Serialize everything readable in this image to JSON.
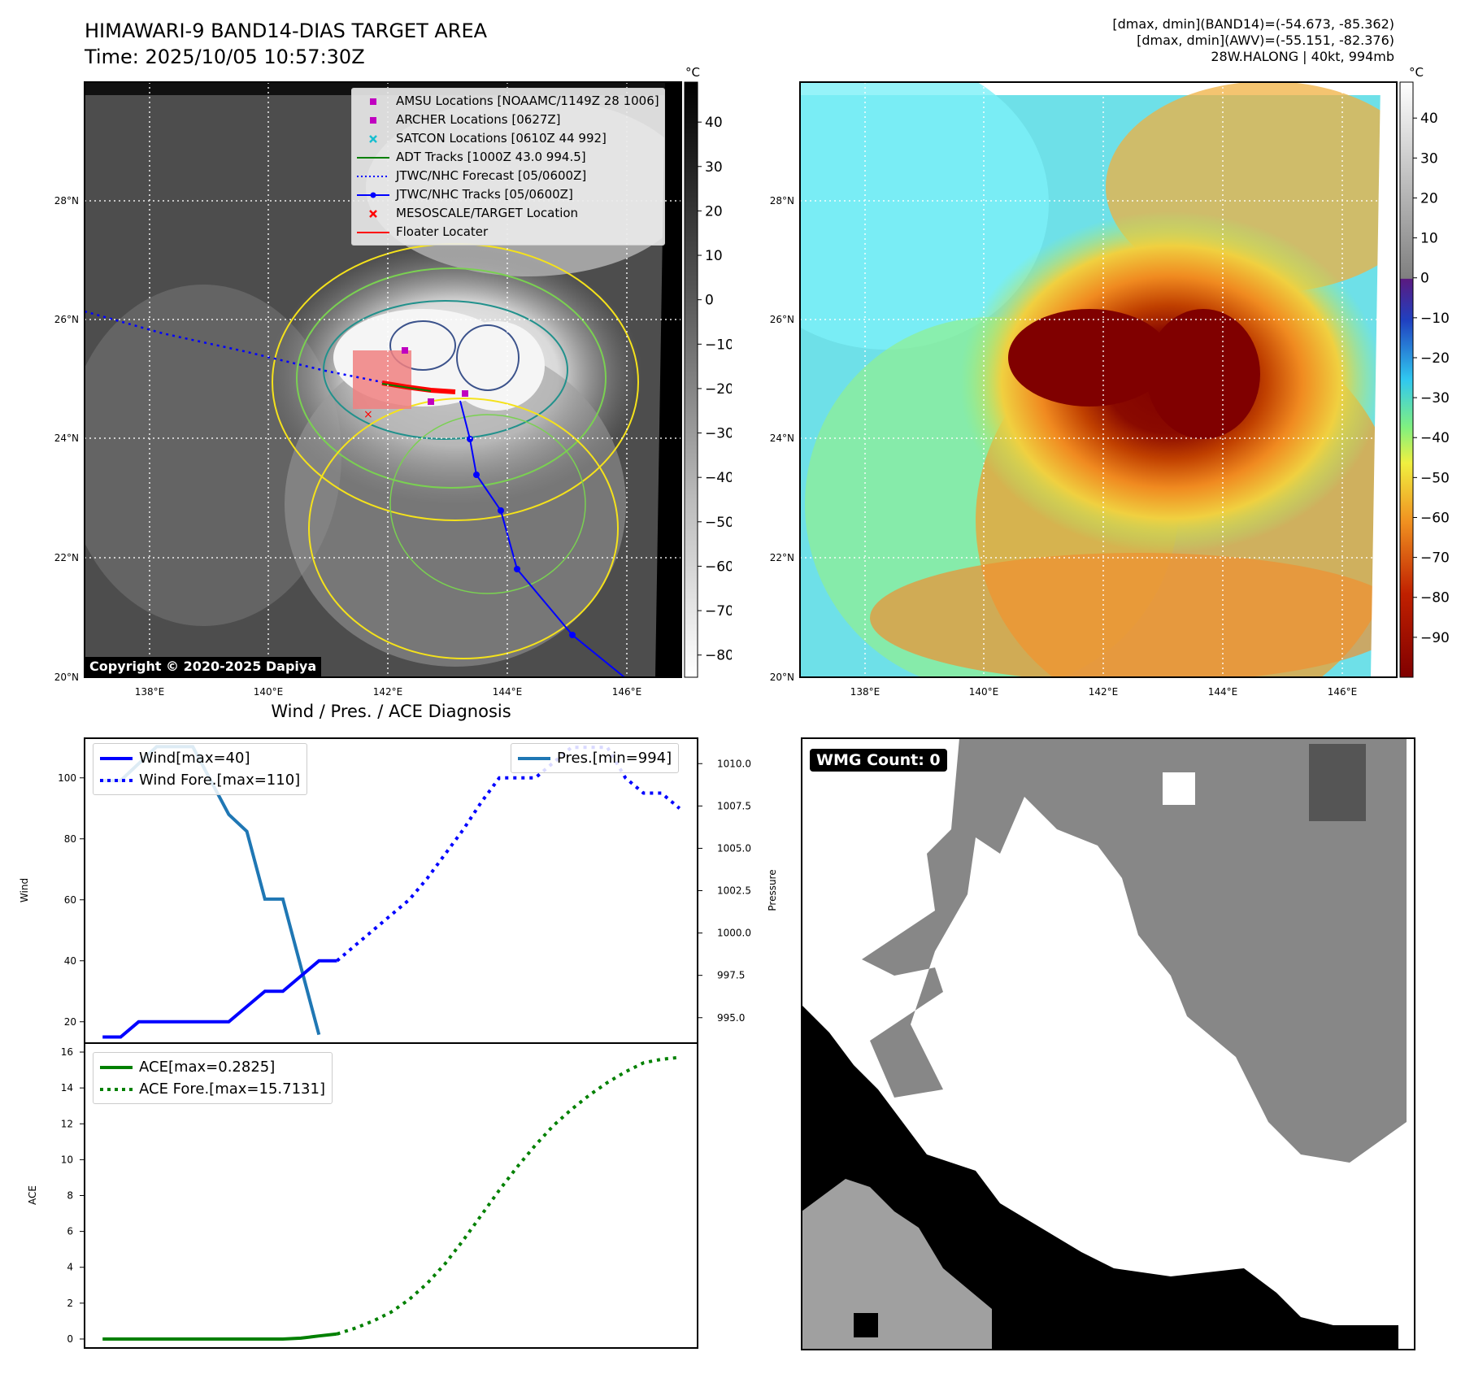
{
  "header": {
    "title_line1": "HIMAWARI-9 BAND14-DIAS TARGET AREA",
    "title_line2": "Time: 2025/10/05 10:57:30Z",
    "stats_line1": "[dmax, dmin](BAND14)=(-54.673, -85.362)",
    "stats_line2": "[dmax, dmin](AWV)=(-55.151, -82.376)",
    "stats_line3": "28W.HALONG | 40kt, 994mb"
  },
  "map_axes": {
    "lat_labels": [
      "28°N",
      "26°N",
      "24°N",
      "22°N",
      "20°N"
    ],
    "lat_values": [
      28,
      26,
      24,
      22,
      20
    ],
    "lon_labels": [
      "138°E",
      "140°E",
      "142°E",
      "144°E",
      "146°E"
    ],
    "lon_values": [
      138,
      140,
      142,
      144,
      146
    ],
    "lon_range": [
      137,
      147
    ],
    "lat_range": [
      20,
      30
    ]
  },
  "colorbar_left": {
    "unit": "°C",
    "ticks": [
      "40",
      "30",
      "20",
      "10",
      "0",
      "−10",
      "−20",
      "−30",
      "−40",
      "−50",
      "−60",
      "−70",
      "−80"
    ],
    "range": [
      -85,
      49
    ]
  },
  "colorbar_right": {
    "unit": "°C",
    "ticks": [
      "40",
      "30",
      "20",
      "10",
      "0",
      "−10",
      "−20",
      "−30",
      "−40",
      "−50",
      "−60",
      "−70",
      "−80",
      "−90"
    ],
    "range": [
      -100,
      49
    ]
  },
  "map_legend": [
    {
      "label": "AMSU Locations [NOAAMC/1149Z 28 1006]",
      "symbol": "square",
      "color": "#c000c0",
      "icon": "magenta-square-icon"
    },
    {
      "label": "ARCHER Locations [0627Z]",
      "symbol": "square",
      "color": "#c000c0",
      "icon": "magenta-square-icon"
    },
    {
      "label": "SATCON Locations [0610Z 44 992]",
      "symbol": "x",
      "color": "#17becf",
      "icon": "cyan-x-icon"
    },
    {
      "label": "ADT Tracks [1000Z 43.0 994.5]",
      "symbol": "line",
      "color": "#008000",
      "icon": "green-line-icon"
    },
    {
      "label": "JTWC/NHC Forecast [05/0600Z]",
      "symbol": "dotted",
      "color": "#0000ff",
      "icon": "blue-dotted-line-icon"
    },
    {
      "label": "JTWC/NHC Tracks [05/0600Z]",
      "symbol": "line-dot",
      "color": "#0000ff",
      "icon": "blue-line-dot-icon"
    },
    {
      "label": "MESOSCALE/TARGET Location",
      "symbol": "x",
      "color": "#ff0000",
      "icon": "red-x-icon"
    },
    {
      "label": "Floater Locater",
      "symbol": "line",
      "color": "#ff0000",
      "icon": "red-line-icon"
    }
  ],
  "copyright": "Copyright © 2020-2025 Dapiya",
  "wmg_count": "WMG Count: 0",
  "chart_data": [
    {
      "type": "line",
      "title": "Wind / Pres. / ACE Diagnosis",
      "ylabel": "Wind",
      "y2label": "Pressure",
      "ylim": [
        13,
        113
      ],
      "y2lim": [
        993.5,
        1011.5
      ],
      "yticks": [
        20,
        40,
        60,
        80,
        100
      ],
      "y2ticks": [
        995.0,
        997.5,
        1000.0,
        1002.5,
        1005.0,
        1007.5,
        1010.0
      ],
      "y2tick_labels": [
        "995.0",
        "997.5",
        "1000.0",
        "1002.5",
        "1005.0",
        "1007.5",
        "1010.0"
      ],
      "xlim": [
        -1,
        33
      ],
      "series": [
        {
          "name": "Wind[max=40]",
          "color": "#0000ff",
          "style": "solid",
          "x": [
            0,
            1,
            2,
            3,
            4,
            5,
            6,
            7,
            8,
            9,
            10,
            11,
            12,
            13
          ],
          "values": [
            15,
            15,
            20,
            20,
            20,
            20,
            20,
            20,
            25,
            30,
            30,
            35,
            40,
            40
          ]
        },
        {
          "name": "Wind Fore.[max=110]",
          "color": "#0000ff",
          "style": "dotted",
          "x": [
            13,
            14,
            15,
            16,
            17,
            18,
            19,
            20,
            21,
            22,
            23,
            24,
            25,
            26,
            27,
            28,
            29,
            30,
            31,
            32
          ],
          "values": [
            40,
            45,
            50,
            55,
            60,
            67,
            75,
            83,
            92,
            100,
            100,
            100,
            105,
            110,
            110,
            110,
            100,
            95,
            95,
            90
          ]
        },
        {
          "name": "Pres.[min=994]",
          "color": "#1f77b4",
          "style": "solid",
          "axis": "right",
          "x": [
            0,
            1,
            2,
            3,
            4,
            5,
            6,
            7,
            8,
            9,
            10,
            11,
            12
          ],
          "values": [
            1009,
            1009,
            1010,
            1011,
            1011,
            1011,
            1009,
            1007,
            1006,
            1002,
            1002,
            998,
            994
          ]
        }
      ]
    },
    {
      "type": "line",
      "ylabel": "ACE",
      "ylim": [
        -0.5,
        16.5
      ],
      "yticks": [
        0,
        2,
        4,
        6,
        8,
        10,
        12,
        14,
        16
      ],
      "xlim": [
        -1,
        33
      ],
      "series": [
        {
          "name": "ACE[max=0.2825]",
          "color": "#008000",
          "style": "solid",
          "x": [
            0,
            1,
            2,
            3,
            4,
            5,
            6,
            7,
            8,
            9,
            10,
            11,
            12,
            13
          ],
          "values": [
            0,
            0,
            0,
            0,
            0,
            0,
            0,
            0,
            0,
            0,
            0,
            0.05,
            0.17,
            0.28
          ]
        },
        {
          "name": "ACE Fore.[max=15.7131]",
          "color": "#008000",
          "style": "dotted",
          "x": [
            13,
            14,
            15,
            16,
            17,
            18,
            19,
            20,
            21,
            22,
            23,
            24,
            25,
            26,
            27,
            28,
            29,
            30,
            31,
            32
          ],
          "values": [
            0.28,
            0.6,
            1.0,
            1.5,
            2.2,
            3.1,
            4.2,
            5.5,
            6.9,
            8.3,
            9.6,
            10.8,
            11.9,
            12.8,
            13.6,
            14.3,
            14.9,
            15.4,
            15.6,
            15.7
          ]
        }
      ]
    }
  ]
}
